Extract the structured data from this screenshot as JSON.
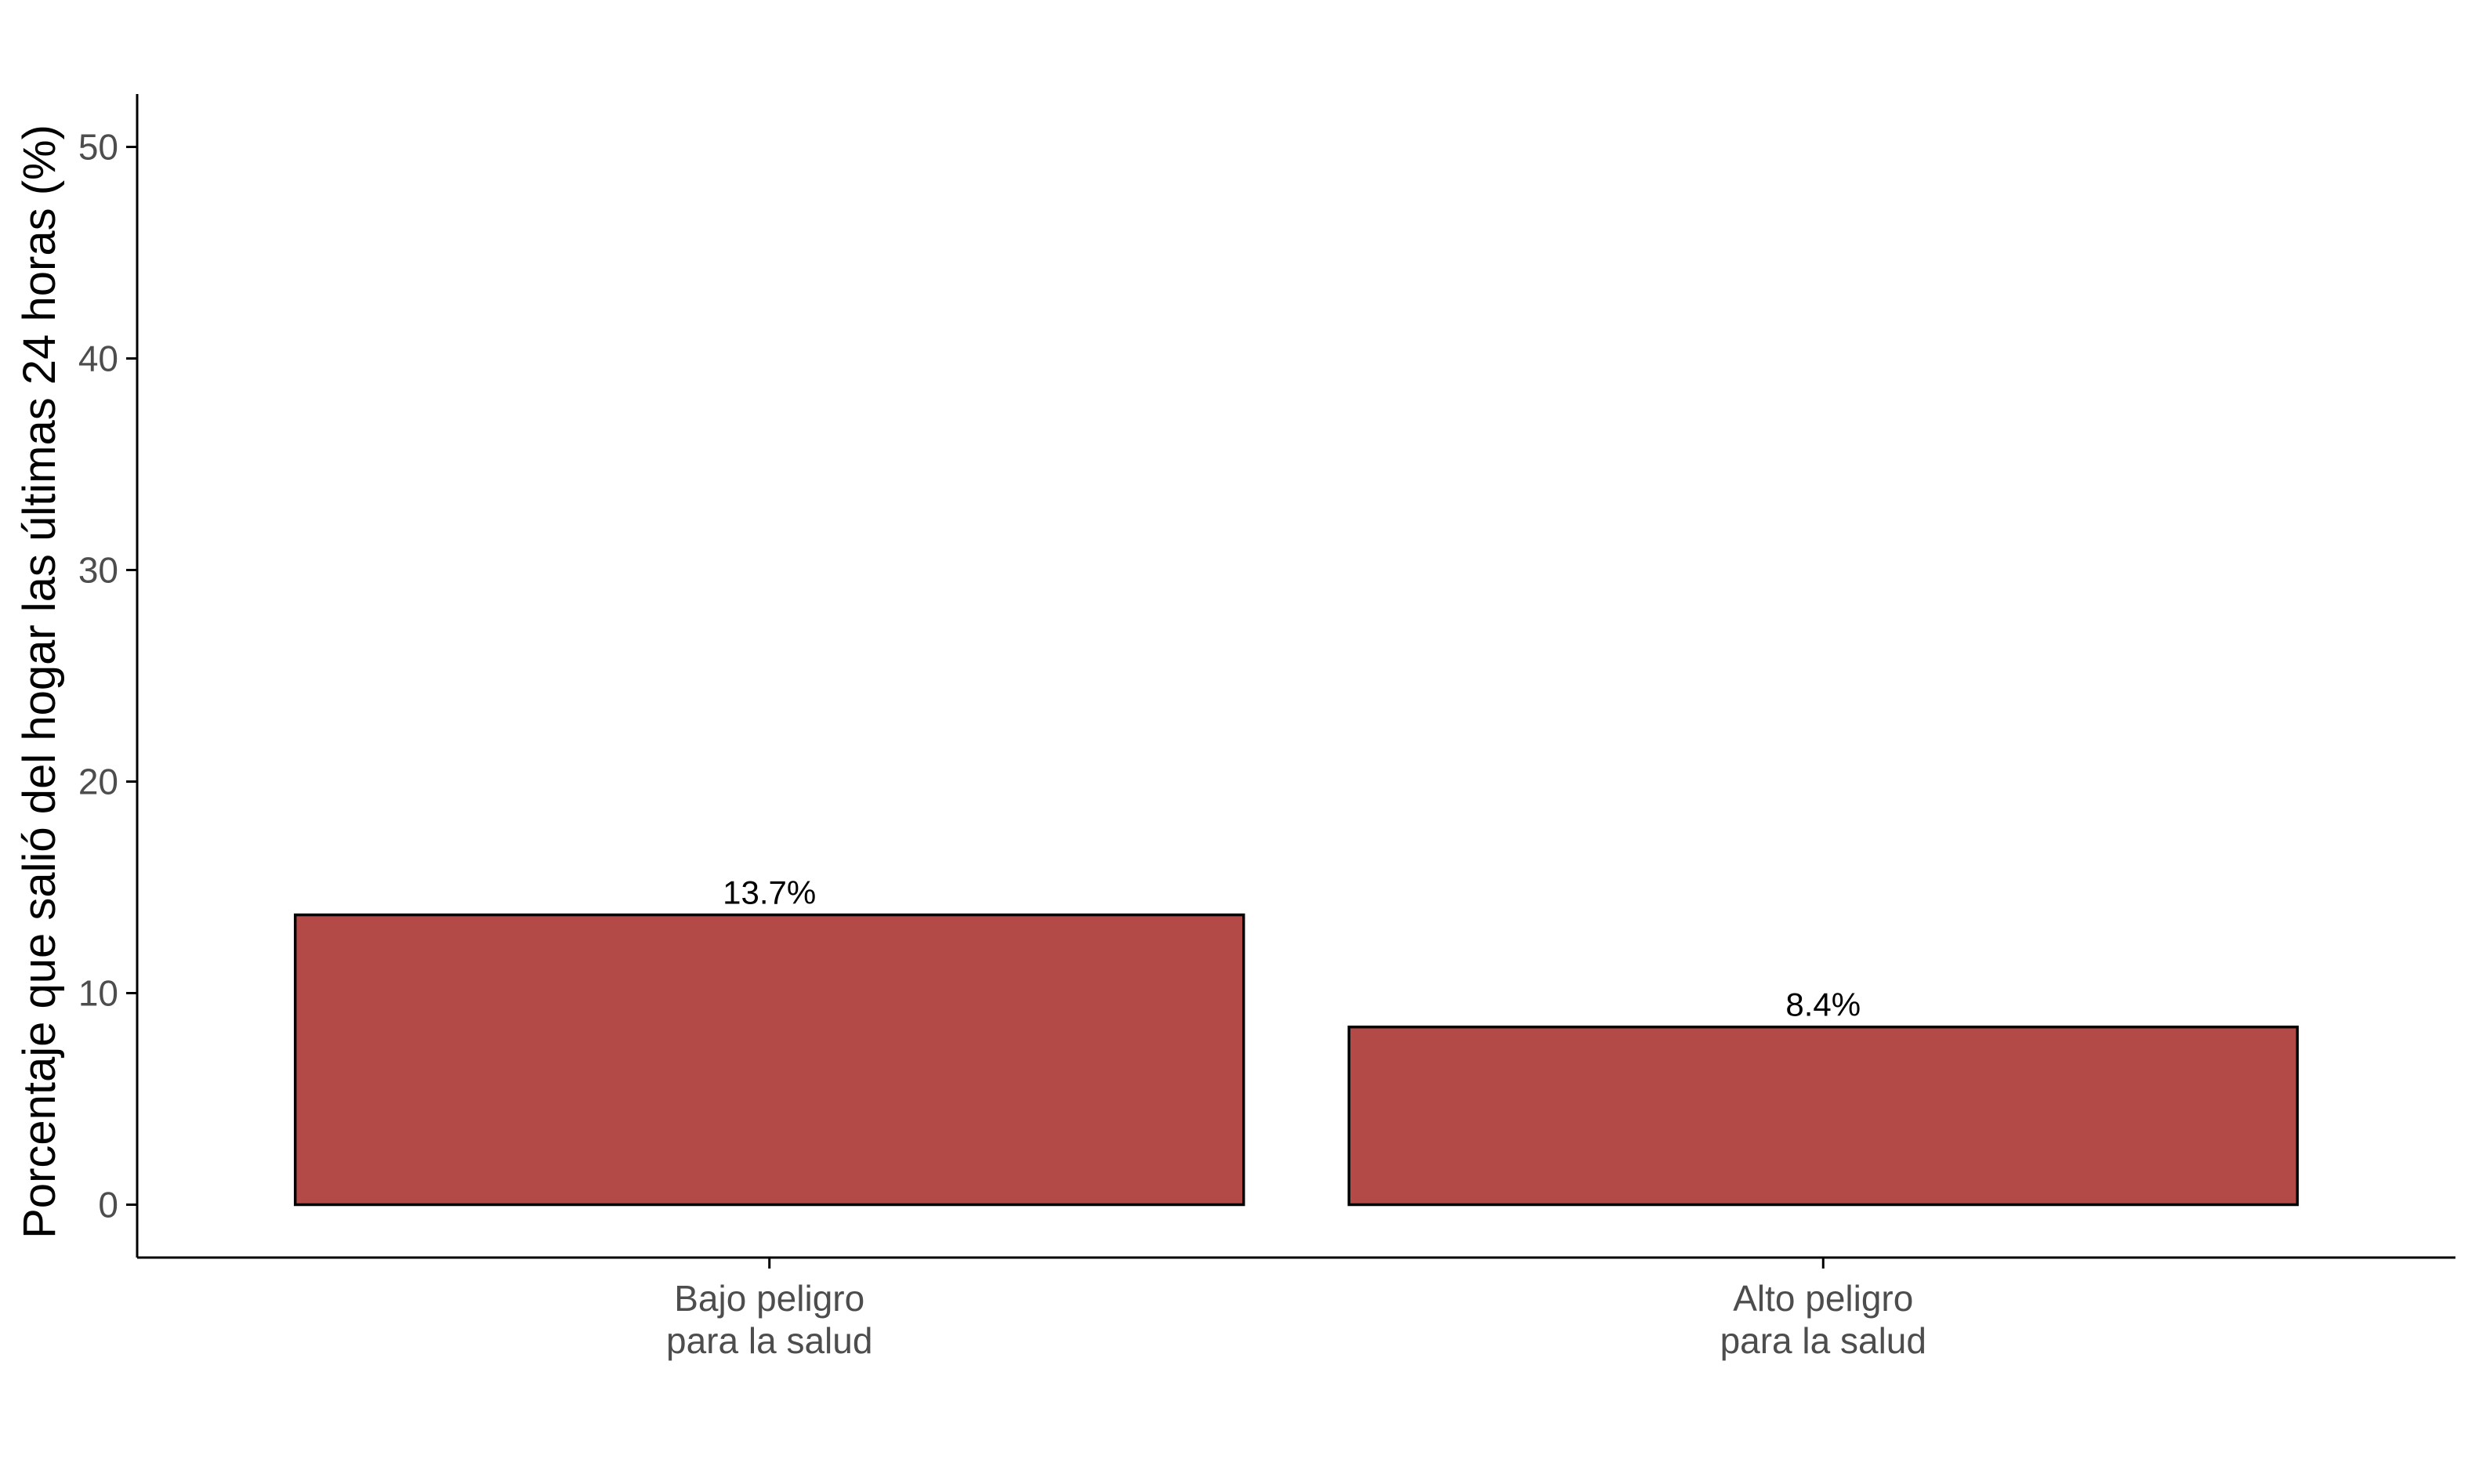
{
  "chart_data": {
    "type": "bar",
    "title": "",
    "xlabel": "",
    "ylabel": "Porcentaje que salió del hogar las últimas 24 horas (%)",
    "categories": [
      [
        "Bajo peligro",
        "para la salud"
      ],
      [
        "Alto peligro",
        "para la salud"
      ]
    ],
    "values": [
      13.7,
      8.4
    ],
    "data_labels": [
      "13.7%",
      "8.4%"
    ],
    "ylim": [
      -2.5,
      52.5
    ],
    "yticks": [
      0,
      10,
      20,
      30,
      40,
      50
    ],
    "ytick_labels": [
      "0",
      "10",
      "20",
      "30",
      "40",
      "50"
    ],
    "grid": false,
    "legend": "none"
  },
  "colors": {
    "bar_fill": "#b34a48",
    "bar_stroke": "#000000",
    "axis": "#000000",
    "tick_label": "#4d4d4d",
    "axis_title": "#000000",
    "data_label": "#000000"
  }
}
